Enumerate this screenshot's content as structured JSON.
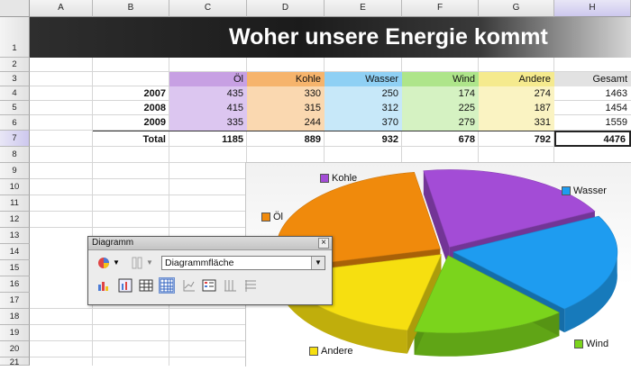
{
  "title": "Woher unsere Energie kommt",
  "columns": [
    "A",
    "B",
    "C",
    "D",
    "E",
    "F",
    "G",
    "H"
  ],
  "rows": [
    "1",
    "2",
    "3",
    "4",
    "5",
    "6",
    "7",
    "8",
    "9",
    "10",
    "11",
    "12",
    "13",
    "14",
    "15",
    "16",
    "17",
    "18",
    "19",
    "20",
    "21"
  ],
  "headers": {
    "oel": "Öl",
    "kohle": "Kohle",
    "wasser": "Wasser",
    "wind": "Wind",
    "andere": "Andere",
    "gesamt": "Gesamt"
  },
  "table": [
    {
      "year": "2007",
      "values": [
        "435",
        "330",
        "250",
        "174",
        "274",
        "1463"
      ]
    },
    {
      "year": "2008",
      "values": [
        "415",
        "315",
        "312",
        "225",
        "187",
        "1454"
      ]
    },
    {
      "year": "2009",
      "values": [
        "335",
        "244",
        "370",
        "279",
        "331",
        "1559"
      ]
    }
  ],
  "total": {
    "label": "Total",
    "values": [
      "1185",
      "889",
      "932",
      "678",
      "792",
      "4476"
    ]
  },
  "colors": {
    "oel": "#c7a0e3",
    "kohle": "#f6b46c",
    "wasser": "#8fd0f4",
    "wind": "#aee58a",
    "andere": "#f5ea8e",
    "gesamt": "#e2e2e2",
    "oel_light": "#dcc6f0",
    "kohle_light": "#fad8b0",
    "wasser_light": "#c7e8f9",
    "wind_light": "#d5f2c2",
    "andere_light": "#faf3c2",
    "pie_oel": "#f08a0c",
    "pie_kohle": "#a34cd6",
    "pie_wasser": "#1e9cf0",
    "pie_wind": "#7bd41c",
    "pie_andere": "#f6df10"
  },
  "chart_data": {
    "type": "pie",
    "title": "",
    "categories": [
      "Öl",
      "Kohle",
      "Wasser",
      "Wind",
      "Andere"
    ],
    "values": [
      1185,
      889,
      932,
      678,
      792
    ],
    "legend": "labels beside slices"
  },
  "toolbar": {
    "title": "Diagramm",
    "close": "×",
    "select_value": "Diagrammfläche"
  }
}
